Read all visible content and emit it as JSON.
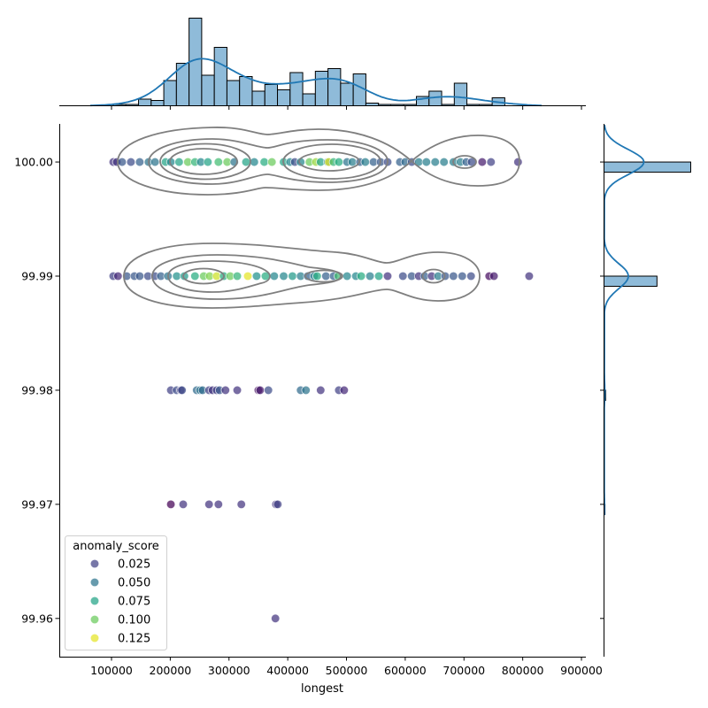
{
  "chart_data": {
    "type": "scatter",
    "title": "",
    "xlabel": "longest",
    "ylabel": "",
    "xlim": [
      11100,
      907500
    ],
    "ylim": [
      99.95665,
      100.00334
    ],
    "grid": false,
    "x_ticks": [
      "100000",
      "200000",
      "300000",
      "400000",
      "500000",
      "600000",
      "700000",
      "800000",
      "900000"
    ],
    "x_tick_values": [
      100000,
      200000,
      300000,
      400000,
      500000,
      600000,
      700000,
      800000,
      900000
    ],
    "y_ticks": [
      "100.00",
      "99.99",
      "99.98",
      "99.97",
      "99.96"
    ],
    "y_tick_values": [
      100.0,
      99.99,
      99.98,
      99.97,
      99.96
    ],
    "hue": {
      "name": "anomaly_score",
      "palette": "viridis",
      "range": [
        0,
        0.13
      ]
    },
    "legend": {
      "title": "anomaly_score",
      "placement": "lower-left",
      "entries": [
        {
          "label": "0.025",
          "value": 0.025
        },
        {
          "label": "0.050",
          "value": 0.05
        },
        {
          "label": "0.075",
          "value": 0.075
        },
        {
          "label": "0.100",
          "value": 0.1
        },
        {
          "label": "0.125",
          "value": 0.125
        }
      ]
    },
    "points": [
      [
        103000,
        100.0,
        0.02
      ],
      [
        109000,
        100.0,
        0.02
      ],
      [
        118000,
        100.0,
        0.035
      ],
      [
        133000,
        100.0,
        0.03
      ],
      [
        148000,
        100.0,
        0.04
      ],
      [
        163000,
        100.0,
        0.05
      ],
      [
        174000,
        100.0,
        0.05
      ],
      [
        192000,
        100.0,
        0.075
      ],
      [
        201000,
        100.0,
        0.06
      ],
      [
        215000,
        100.0,
        0.075
      ],
      [
        230000,
        100.0,
        0.1
      ],
      [
        242000,
        100.0,
        0.085
      ],
      [
        252000,
        100.0,
        0.06
      ],
      [
        264000,
        100.0,
        0.075
      ],
      [
        282000,
        100.0,
        0.09
      ],
      [
        297000,
        100.0,
        0.1
      ],
      [
        309000,
        100.0,
        0.05
      ],
      [
        329000,
        100.0,
        0.075
      ],
      [
        343000,
        100.0,
        0.06
      ],
      [
        360000,
        100.0,
        0.08
      ],
      [
        373000,
        100.0,
        0.1
      ],
      [
        393000,
        100.0,
        0.075
      ],
      [
        404000,
        100.0,
        0.06
      ],
      [
        412000,
        100.0,
        0.03
      ],
      [
        422000,
        100.0,
        0.06
      ],
      [
        437000,
        100.0,
        0.1
      ],
      [
        448000,
        100.0,
        0.11
      ],
      [
        456000,
        100.0,
        0.075
      ],
      [
        468000,
        100.0,
        0.06
      ],
      [
        470000,
        100.0,
        0.125
      ],
      [
        478000,
        100.0,
        0.085
      ],
      [
        487000,
        100.0,
        0.08
      ],
      [
        501000,
        100.0,
        0.05
      ],
      [
        510000,
        100.0,
        0.055
      ],
      [
        523000,
        100.0,
        0.04
      ],
      [
        532000,
        100.0,
        0.055
      ],
      [
        546000,
        100.0,
        0.04
      ],
      [
        558000,
        100.0,
        0.035
      ],
      [
        570000,
        100.0,
        0.03
      ],
      [
        591000,
        100.0,
        0.04
      ],
      [
        600000,
        100.0,
        0.045
      ],
      [
        611000,
        100.0,
        0.03
      ],
      [
        623000,
        100.0,
        0.055
      ],
      [
        636000,
        100.0,
        0.055
      ],
      [
        651000,
        100.0,
        0.055
      ],
      [
        666000,
        100.0,
        0.055
      ],
      [
        682000,
        100.0,
        0.055
      ],
      [
        694000,
        100.0,
        0.055
      ],
      [
        704000,
        100.0,
        0.04
      ],
      [
        713000,
        100.0,
        0.03
      ],
      [
        731000,
        100.0,
        0.01
      ],
      [
        746000,
        100.0,
        0.025
      ],
      [
        792000,
        100.0,
        0.02
      ],
      [
        103000,
        99.99,
        0.025
      ],
      [
        111000,
        99.99,
        0.015
      ],
      [
        126000,
        99.99,
        0.035
      ],
      [
        139000,
        99.99,
        0.035
      ],
      [
        148000,
        99.99,
        0.035
      ],
      [
        162000,
        99.99,
        0.03
      ],
      [
        174000,
        99.99,
        0.03
      ],
      [
        184000,
        99.99,
        0.04
      ],
      [
        196000,
        99.99,
        0.05
      ],
      [
        211000,
        99.99,
        0.065
      ],
      [
        224000,
        99.99,
        0.07
      ],
      [
        242000,
        99.99,
        0.08
      ],
      [
        257000,
        99.99,
        0.1
      ],
      [
        267000,
        99.99,
        0.105
      ],
      [
        279000,
        99.99,
        0.12
      ],
      [
        291000,
        99.99,
        0.08
      ],
      [
        302000,
        99.99,
        0.1
      ],
      [
        314000,
        99.99,
        0.085
      ],
      [
        332000,
        99.99,
        0.125
      ],
      [
        347000,
        99.99,
        0.065
      ],
      [
        362000,
        99.99,
        0.08
      ],
      [
        377000,
        99.99,
        0.06
      ],
      [
        393000,
        99.99,
        0.06
      ],
      [
        408000,
        99.99,
        0.07
      ],
      [
        422000,
        99.99,
        0.055
      ],
      [
        434000,
        99.99,
        0.04
      ],
      [
        445000,
        99.99,
        0.055
      ],
      [
        450000,
        99.99,
        0.08
      ],
      [
        465000,
        99.99,
        0.04
      ],
      [
        478000,
        99.99,
        0.04
      ],
      [
        486000,
        99.99,
        0.09
      ],
      [
        501000,
        99.99,
        0.06
      ],
      [
        516000,
        99.99,
        0.06
      ],
      [
        525000,
        99.99,
        0.08
      ],
      [
        540000,
        99.99,
        0.055
      ],
      [
        555000,
        99.99,
        0.075
      ],
      [
        570000,
        99.99,
        0.02
      ],
      [
        596000,
        99.99,
        0.03
      ],
      [
        611000,
        99.99,
        0.035
      ],
      [
        623000,
        99.99,
        0.02
      ],
      [
        633000,
        99.99,
        0.04
      ],
      [
        645000,
        99.99,
        0.02
      ],
      [
        656000,
        99.99,
        0.055
      ],
      [
        668000,
        99.99,
        0.035
      ],
      [
        682000,
        99.99,
        0.035
      ],
      [
        697000,
        99.99,
        0.035
      ],
      [
        712000,
        99.99,
        0.03
      ],
      [
        743000,
        99.99,
        0.005
      ],
      [
        751000,
        99.99,
        0.01
      ],
      [
        811000,
        99.99,
        0.02
      ],
      [
        201000,
        99.98,
        0.025
      ],
      [
        211000,
        99.98,
        0.03
      ],
      [
        218000,
        99.98,
        0.02
      ],
      [
        220000,
        99.98,
        0.03
      ],
      [
        245000,
        99.98,
        0.045
      ],
      [
        251000,
        99.98,
        0.05
      ],
      [
        255000,
        99.98,
        0.045
      ],
      [
        266000,
        99.98,
        0.025
      ],
      [
        272000,
        99.98,
        0.02
      ],
      [
        279000,
        99.98,
        0.025
      ],
      [
        284000,
        99.98,
        0.035
      ],
      [
        294000,
        99.98,
        0.02
      ],
      [
        314000,
        99.98,
        0.02
      ],
      [
        350000,
        99.98,
        0.005
      ],
      [
        353000,
        99.98,
        0.01
      ],
      [
        367000,
        99.98,
        0.03
      ],
      [
        422000,
        99.98,
        0.045
      ],
      [
        431000,
        99.98,
        0.05
      ],
      [
        456000,
        99.98,
        0.02
      ],
      [
        487000,
        99.98,
        0.025
      ],
      [
        496000,
        99.98,
        0.015
      ],
      [
        201000,
        99.97,
        0.0
      ],
      [
        222000,
        99.97,
        0.02
      ],
      [
        266000,
        99.97,
        0.02
      ],
      [
        282000,
        99.97,
        0.02
      ],
      [
        321000,
        99.97,
        0.02
      ],
      [
        380000,
        99.97,
        0.02
      ],
      [
        383000,
        99.97,
        0.025
      ],
      [
        379000,
        99.96,
        0.02
      ]
    ],
    "marginal_x": {
      "type": "histogram",
      "kde": true,
      "bin_start": 103000,
      "bin_width": 21500,
      "counts": [
        1,
        1,
        5,
        4,
        19,
        32,
        66,
        23,
        44,
        19,
        22,
        11,
        16,
        12,
        25,
        9,
        26,
        28,
        17,
        24,
        2,
        1,
        1,
        1,
        7,
        11,
        1,
        17,
        1,
        1,
        6
      ]
    },
    "marginal_y": {
      "type": "histogram",
      "kde": true,
      "levels": [
        100.0,
        99.99,
        99.98,
        99.97,
        99.96
      ],
      "counts": [
        262,
        160,
        5,
        3,
        1
      ]
    },
    "colors": {
      "hist_fill": "#8fbbd9",
      "kde_line": "#1f77b4",
      "contour": "#7f7f7f"
    }
  }
}
